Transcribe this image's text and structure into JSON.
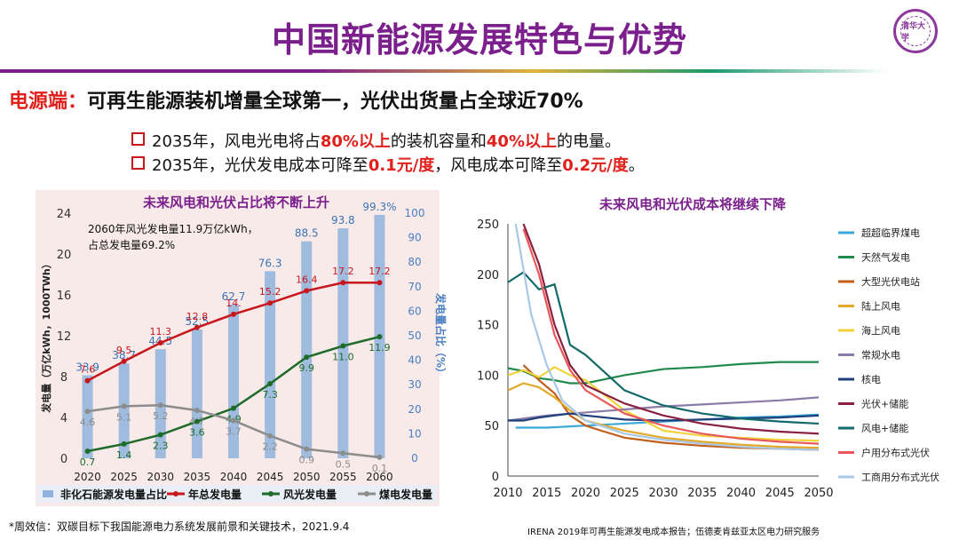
{
  "slide": {
    "title": "中国新能源发展特色与优势",
    "subhead_red": "电源端：",
    "subhead_black": "可再生能源装机增量全球第一，光伏出货量占全球近70%",
    "bullets": [
      {
        "pre": "2035年，风电光电将占",
        "e1": "80%以上",
        "mid": "的装机容量和",
        "e2": "40%以上",
        "post": "的电量。"
      },
      {
        "pre": "2035年，光伏发电成本可降至",
        "e1": "0.1元/度",
        "mid": "，风电成本可降至",
        "e2": "0.2元/度",
        "post": "。"
      }
    ],
    "footnote_left": "*周效信：双碳目标下我国能源电力系统发展前景和关键技术，2021.9.4",
    "footnote_right": "IRENA 2019年可再生能源发电成本报告；伍德麦肯兹亚太区电力研究服务",
    "seal_text": "清华大学",
    "colors": {
      "title": "#7b1f8c",
      "accent_red": "#e0201b"
    }
  },
  "chart_data": [
    {
      "type": "bar",
      "title": "未来风电和光伏占比将不断上升",
      "annotation": [
        "2060年风光发电量11.9万亿kWh，",
        "占总发电量69.2%"
      ],
      "ylabel_left": "发电量（万亿kWh，1000TWh）",
      "ylabel_right": "发电量占比（%）",
      "ylim_left": [
        0,
        24
      ],
      "yticks_left": [
        0,
        4,
        8,
        12,
        16,
        20,
        24
      ],
      "ylim_right": [
        0,
        100
      ],
      "yticks_right": [
        0,
        10,
        20,
        30,
        40,
        50,
        60,
        70,
        80,
        90,
        100
      ],
      "categories": [
        "2020",
        "2025",
        "2030",
        "2035",
        "2040",
        "2045",
        "2050",
        "2055",
        "2060"
      ],
      "series": [
        {
          "name": "非化石能源发电量占比",
          "kind": "bar",
          "axis": "right",
          "color": "#8fb3dc",
          "values": [
            33.9,
            38.7,
            44.5,
            52.5,
            62.7,
            76.3,
            88.5,
            93.8,
            99.3
          ],
          "labels": [
            "33.9",
            "38.7",
            "44.5",
            "52.5",
            "62.7",
            "76.3",
            "88.5",
            "93.8",
            "99.3%"
          ]
        },
        {
          "name": "年总发电量",
          "kind": "line",
          "axis": "left",
          "color": "#c8161d",
          "values": [
            7.6,
            9.5,
            11.3,
            12.8,
            14.1,
            15.2,
            16.4,
            17.2,
            17.2
          ],
          "labels": [
            "7.6",
            "9.5",
            "11.3",
            "12.8",
            "14.",
            "15.2",
            "16.4",
            "17.2",
            "17.2"
          ]
        },
        {
          "name": "风光发电量",
          "kind": "line",
          "axis": "left",
          "color": "#1e6b2a",
          "values": [
            0.7,
            1.4,
            2.3,
            3.6,
            4.9,
            7.3,
            9.9,
            11.0,
            11.9
          ],
          "labels": [
            "0.7",
            "1.4",
            "2.3",
            "3.6",
            "4.9",
            "7.3",
            "9.9",
            "11.0",
            "11.9"
          ]
        },
        {
          "name": "煤电发电量",
          "kind": "line",
          "axis": "left",
          "color": "#8c8c8c",
          "values": [
            4.6,
            5.1,
            5.2,
            4.7,
            3.7,
            2.2,
            0.9,
            0.5,
            0.1
          ],
          "labels": [
            "4.6",
            "5.1",
            "5.2",
            "4.7",
            "3.7",
            "2.2",
            "0.9",
            "0.5",
            "0.1"
          ]
        }
      ]
    },
    {
      "type": "line",
      "title": "未来风电和光伏成本将继续下降",
      "xlim": [
        2010,
        2050
      ],
      "xticks": [
        2010,
        2015,
        2020,
        2025,
        2030,
        2035,
        2040,
        2045,
        2050
      ],
      "ylim": [
        0,
        250
      ],
      "yticks": [
        0,
        50,
        100,
        150,
        200,
        250
      ],
      "series": [
        {
          "name": "超超临界煤电",
          "color": "#3aa8d8",
          "x": [
            2011,
            2015,
            2020,
            2025,
            2030,
            2035,
            2040,
            2045,
            2050
          ],
          "y": [
            48,
            48,
            50,
            52,
            54,
            56,
            58,
            59,
            61
          ]
        },
        {
          "name": "天然气发电",
          "color": "#1f8a4c",
          "x": [
            2010,
            2012,
            2014,
            2016,
            2018,
            2020,
            2025,
            2030,
            2035,
            2040,
            2045,
            2050
          ],
          "y": [
            107,
            104,
            97,
            95,
            92,
            92,
            100,
            106,
            108,
            111,
            113,
            113
          ]
        },
        {
          "name": "大型光伏电站",
          "color": "#c05e1b",
          "x": [
            2012,
            2014,
            2016,
            2018,
            2020,
            2022,
            2025,
            2030,
            2035,
            2040,
            2045,
            2050
          ],
          "y": [
            110,
            95,
            82,
            60,
            50,
            45,
            38,
            33,
            30,
            28,
            27,
            26
          ]
        },
        {
          "name": "陆上风电",
          "color": "#e2a92a",
          "x": [
            2010,
            2012,
            2014,
            2016,
            2018,
            2020,
            2025,
            2030,
            2035,
            2040,
            2045,
            2050
          ],
          "y": [
            85,
            92,
            88,
            78,
            65,
            55,
            45,
            38,
            34,
            31,
            29,
            28
          ]
        },
        {
          "name": "海上风电",
          "color": "#f0d23a",
          "x": [
            2010,
            2012,
            2014,
            2016,
            2018,
            2020,
            2025,
            2030,
            2035,
            2040,
            2045,
            2050
          ],
          "y": [
            100,
            105,
            98,
            108,
            100,
            95,
            65,
            45,
            40,
            38,
            36,
            35
          ]
        },
        {
          "name": "常规水电",
          "color": "#8a7ba8",
          "x": [
            2010,
            2015,
            2020,
            2025,
            2030,
            2035,
            2040,
            2045,
            2050
          ],
          "y": [
            55,
            60,
            63,
            66,
            69,
            71,
            73,
            75,
            78
          ]
        },
        {
          "name": "核电",
          "color": "#1f3f7a",
          "x": [
            2010,
            2012,
            2014,
            2016,
            2018,
            2020,
            2025,
            2030,
            2035,
            2040,
            2045,
            2050
          ],
          "y": [
            55,
            55,
            58,
            60,
            62,
            60,
            56,
            55,
            56,
            57,
            58,
            60
          ]
        },
        {
          "name": "光伏+储能",
          "color": "#8a2040",
          "x": [
            2012,
            2014,
            2016,
            2018,
            2020,
            2025,
            2030,
            2035,
            2040,
            2045,
            2050
          ],
          "y": [
            250,
            210,
            150,
            110,
            90,
            72,
            60,
            52,
            47,
            44,
            42
          ]
        },
        {
          "name": "风电+储能",
          "color": "#136a6a",
          "x": [
            2010,
            2012,
            2014,
            2016,
            2018,
            2020,
            2025,
            2030,
            2035,
            2040,
            2045,
            2050
          ],
          "y": [
            192,
            202,
            185,
            190,
            130,
            120,
            85,
            70,
            62,
            57,
            54,
            52
          ]
        },
        {
          "name": "户用分布式光伏",
          "color": "#e8585a",
          "x": [
            2012,
            2014,
            2016,
            2018,
            2020,
            2025,
            2030,
            2035,
            2040,
            2045,
            2050
          ],
          "y": [
            245,
            200,
            140,
            105,
            85,
            62,
            50,
            42,
            37,
            34,
            32
          ]
        },
        {
          "name": "工商用分布式光伏",
          "color": "#a9c8e6",
          "x": [
            2011,
            2013,
            2015,
            2017,
            2020,
            2025,
            2030,
            2035,
            2040,
            2045,
            2050
          ],
          "y": [
            250,
            160,
            110,
            75,
            55,
            42,
            36,
            32,
            29,
            27,
            26
          ]
        }
      ]
    }
  ]
}
